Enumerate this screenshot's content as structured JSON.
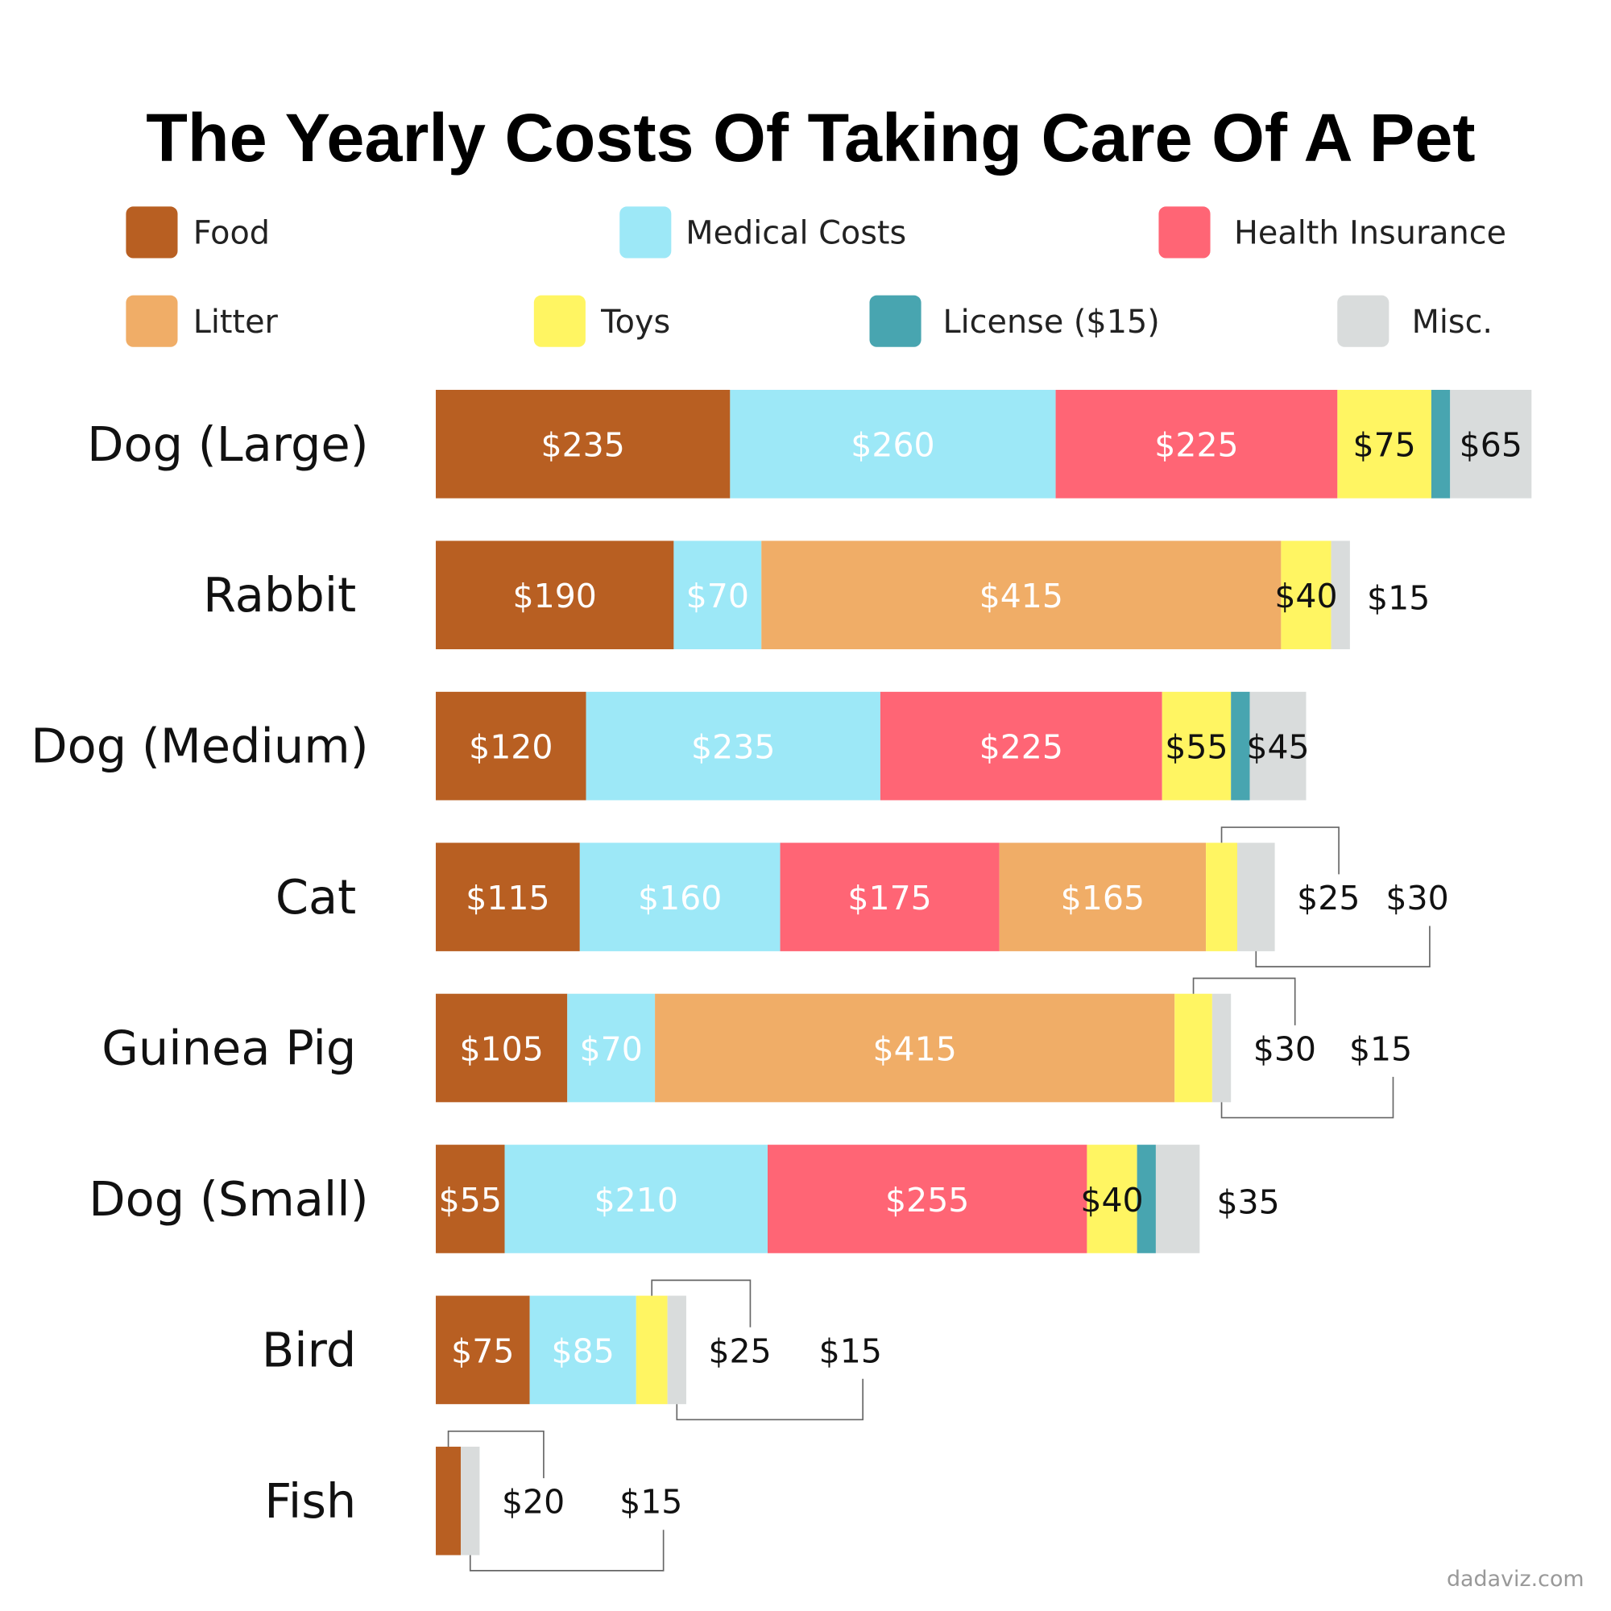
{
  "chart_data": {
    "type": "bar",
    "orientation": "horizontal",
    "stacked": true,
    "title": "The Yearly Costs Of Taking Care Of A Pet",
    "unit": "$",
    "categories": [
      "Dog (Large)",
      "Rabbit",
      "Dog (Medium)",
      "Cat",
      "Guinea Pig",
      "Dog (Small)",
      "Bird",
      "Fish"
    ],
    "series": [
      {
        "key": "food",
        "name": "Food",
        "color": "#B85F22",
        "values": [
          235,
          190,
          120,
          115,
          105,
          55,
          75,
          20
        ]
      },
      {
        "key": "medical",
        "name": "Medical Costs",
        "color": "#9DE8F7",
        "values": [
          260,
          70,
          235,
          160,
          70,
          210,
          85,
          0
        ]
      },
      {
        "key": "insurance",
        "name": "Health Insurance",
        "color": "#FF6575",
        "values": [
          225,
          0,
          225,
          175,
          0,
          255,
          0,
          0
        ]
      },
      {
        "key": "litter",
        "name": "Litter",
        "color": "#F0AD67",
        "values": [
          0,
          415,
          0,
          165,
          415,
          0,
          0,
          0
        ]
      },
      {
        "key": "toys",
        "name": "Toys",
        "color": "#FFF562",
        "values": [
          75,
          40,
          55,
          25,
          30,
          40,
          25,
          0
        ]
      },
      {
        "key": "license",
        "name": "License ($15)",
        "color": "#48A5B0",
        "values": [
          15,
          0,
          15,
          0,
          0,
          15,
          0,
          0
        ]
      },
      {
        "key": "misc",
        "name": "Misc.",
        "color": "#D9DCDC",
        "values": [
          65,
          15,
          45,
          30,
          15,
          35,
          15,
          15
        ]
      }
    ],
    "legend_placement": "top",
    "grid": false,
    "data_labels": true
  },
  "watermark": "dadaviz.com"
}
